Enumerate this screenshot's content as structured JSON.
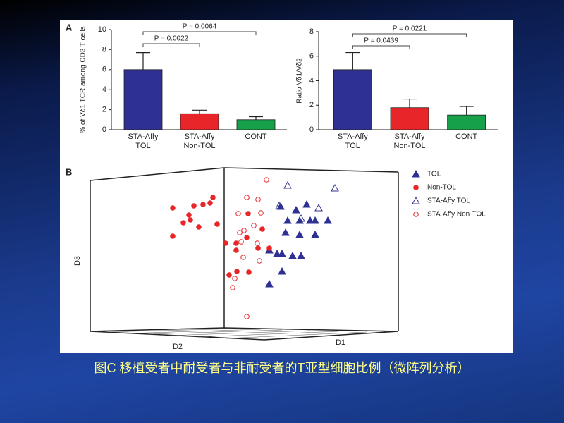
{
  "chart_data": [
    {
      "type": "bar",
      "panel": "A",
      "ylabel": "% of Vδ1 TCR among CD3 T cells",
      "categories": [
        "STA-Affy\nTOL",
        "STA-Affy\nNon-TOL",
        "CONT"
      ],
      "values": [
        6.0,
        1.6,
        1.0
      ],
      "errors": [
        1.7,
        0.35,
        0.3
      ],
      "colors": [
        "#2e3192",
        "#e8262a",
        "#17a04a"
      ],
      "ylim": [
        0,
        10
      ],
      "yticks": [
        0,
        2,
        4,
        6,
        8,
        10
      ],
      "annotations": [
        "P = 0.0022",
        "P = 0.0064"
      ]
    },
    {
      "type": "bar",
      "ylabel": "Ratio Vδ1/Vδ2",
      "categories": [
        "STA-Affy\nTOL",
        "STA-Affy\nNon-TOL",
        "CONT"
      ],
      "values": [
        4.9,
        1.8,
        1.2
      ],
      "errors": [
        1.4,
        0.7,
        0.7
      ],
      "colors": [
        "#2e3192",
        "#e8262a",
        "#17a04a"
      ],
      "ylim": [
        0,
        8
      ],
      "yticks": [
        0,
        2,
        4,
        6,
        8
      ],
      "annotations": [
        "P = 0.0439",
        "P = 0.0221"
      ]
    },
    {
      "type": "scatter3d",
      "panel": "B",
      "xlabel": "D1",
      "ylabel": "D3",
      "zlabel": "D2",
      "xlim": [
        0,
        430
      ],
      "ylim": [
        0,
        230
      ],
      "series": [
        {
          "name": "TOL",
          "color": "#2e3192",
          "marker": "triangle",
          "filled": true,
          "x": [
            268,
            290,
            305,
            278,
            295,
            310,
            317,
            335,
            275,
            295,
            317,
            252,
            263,
            285,
            297,
            270,
            252,
            270
          ],
          "values": [
            177,
            172,
            180,
            157,
            157,
            157,
            157,
            157,
            140,
            137,
            137,
            115,
            110,
            107,
            107,
            85,
            67,
            110
          ]
        },
        {
          "name": "Non-TOL",
          "color": "#e8262a",
          "marker": "circle",
          "filled": true,
          "x": [
            172,
            168,
            158,
            145,
            115,
            152,
            138,
            130,
            140,
            115,
            178,
            190,
            205,
            220,
            205,
            222,
            236,
            206,
            195,
            223,
            242,
            252
          ],
          "values": [
            190,
            182,
            180,
            178,
            175,
            148,
            165,
            154,
            158,
            135,
            152,
            125,
            125,
            133,
            115,
            167,
            118,
            85,
            80,
            84,
            145,
            118
          ]
        },
        {
          "name": "STA-Affy TOL",
          "color": "#2e3192",
          "marker": "triangle",
          "filled": false,
          "x": [
            278,
            345,
            266,
            322,
            297
          ],
          "values": [
            207,
            203,
            178,
            175,
            160
          ]
        },
        {
          "name": "STA-Affy Non-TOL",
          "color": "#e8262a",
          "marker": "circle",
          "filled": false,
          "x": [
            248,
            220,
            236,
            208,
            216,
            240,
            230,
            212,
            235,
            215,
            238,
            203,
            200,
            220,
            210
          ],
          "values": [
            215,
            190,
            187,
            167,
            143,
            168,
            150,
            127,
            125,
            105,
            100,
            75,
            62,
            21,
            140
          ]
        }
      ]
    }
  ],
  "caption": "图C 移植受者中耐受者与非耐受者的T亚型细胞比例（微阵列分析）"
}
